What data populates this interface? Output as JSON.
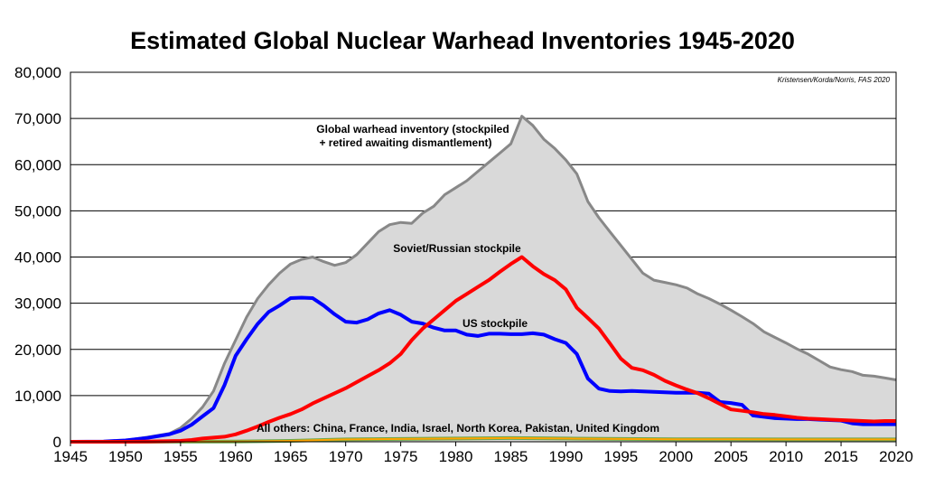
{
  "chart_data": {
    "type": "area",
    "title": "Estimated Global Nuclear Warhead Inventories 1945-2020",
    "credit": "Kristensen/Korda/Norris, FAS 2020",
    "xlabel": "",
    "ylabel": "",
    "xlim": [
      1945,
      2020
    ],
    "ylim": [
      0,
      80000
    ],
    "x_ticks": [
      "1945",
      "1950",
      "1955",
      "1960",
      "1965",
      "1970",
      "1975",
      "1980",
      "1985",
      "1990",
      "1995",
      "2000",
      "2005",
      "2010",
      "2015",
      "2020"
    ],
    "y_ticks": [
      "0",
      "10,000",
      "20,000",
      "30,000",
      "40,000",
      "50,000",
      "60,000",
      "70,000",
      "80,000"
    ],
    "grid": true,
    "annotations": {
      "global_line1": "Global warhead inventory (stockpiled",
      "global_line2": "+ retired awaiting dismantlement)",
      "soviet": "Soviet/Russian stockpile",
      "us": "US stockpile",
      "others": "All others: China, France, India, Israel, North Korea, Pakistan, United Kingdom"
    },
    "series": [
      {
        "name": "Global warhead inventory",
        "color": "#888888",
        "fill": "#d9d9d9",
        "x": [
          1945,
          1948,
          1950,
          1952,
          1954,
          1955,
          1956,
          1957,
          1958,
          1959,
          1960,
          1961,
          1962,
          1963,
          1964,
          1965,
          1966,
          1967,
          1968,
          1969,
          1970,
          1971,
          1972,
          1973,
          1974,
          1975,
          1976,
          1977,
          1978,
          1979,
          1980,
          1981,
          1982,
          1983,
          1984,
          1985,
          1986,
          1987,
          1988,
          1989,
          1990,
          1991,
          1992,
          1993,
          1994,
          1995,
          1996,
          1997,
          1998,
          1999,
          2000,
          2001,
          2002,
          2003,
          2004,
          2005,
          2006,
          2007,
          2008,
          2009,
          2010,
          2011,
          2012,
          2013,
          2014,
          2015,
          2016,
          2017,
          2018,
          2019,
          2020
        ],
        "values": [
          0,
          50,
          300,
          1000,
          1800,
          3000,
          5000,
          7500,
          11000,
          17000,
          22000,
          27000,
          31000,
          34000,
          36500,
          38500,
          39500,
          40000,
          39000,
          38200,
          38800,
          40500,
          43000,
          45500,
          47000,
          47500,
          47300,
          49500,
          51000,
          53500,
          55000,
          56500,
          58500,
          60500,
          62500,
          64500,
          70500,
          68500,
          65500,
          63500,
          61000,
          58000,
          52000,
          48500,
          45500,
          42500,
          39500,
          36500,
          35000,
          34500,
          34000,
          33300,
          32000,
          31000,
          29800,
          28500,
          27100,
          25600,
          23800,
          22600,
          21400,
          20100,
          19000,
          17600,
          16200,
          15600,
          15200,
          14400,
          14200,
          13800,
          13400
        ]
      },
      {
        "name": "Soviet/Russian stockpile",
        "color": "#ff0000",
        "x": [
          1945,
          1949,
          1950,
          1952,
          1954,
          1955,
          1956,
          1957,
          1958,
          1959,
          1960,
          1961,
          1962,
          1963,
          1964,
          1965,
          1966,
          1967,
          1968,
          1969,
          1970,
          1971,
          1972,
          1973,
          1974,
          1975,
          1976,
          1977,
          1978,
          1979,
          1980,
          1981,
          1982,
          1983,
          1984,
          1985,
          1986,
          1987,
          1988,
          1989,
          1990,
          1991,
          1992,
          1993,
          1994,
          1995,
          1996,
          1997,
          1998,
          1999,
          2000,
          2001,
          2002,
          2003,
          2004,
          2005,
          2006,
          2007,
          2008,
          2009,
          2010,
          2011,
          2012,
          2013,
          2014,
          2015,
          2016,
          2017,
          2018,
          2019,
          2020
        ],
        "values": [
          0,
          0,
          5,
          50,
          150,
          200,
          400,
          700,
          900,
          1100,
          1600,
          2400,
          3300,
          4300,
          5200,
          6000,
          7000,
          8300,
          9400,
          10500,
          11600,
          12900,
          14200,
          15500,
          17000,
          19000,
          22000,
          24500,
          26500,
          28500,
          30500,
          32000,
          33500,
          35000,
          36800,
          38500,
          40000,
          38000,
          36300,
          35000,
          33000,
          29000,
          26800,
          24500,
          21300,
          18000,
          16000,
          15500,
          14500,
          13200,
          12200,
          11300,
          10500,
          9400,
          8200,
          7000,
          6700,
          6400,
          6000,
          5800,
          5500,
          5200,
          5000,
          4900,
          4800,
          4700,
          4600,
          4500,
          4400,
          4500,
          4500
        ]
      },
      {
        "name": "US stockpile",
        "color": "#0000ff",
        "x": [
          1945,
          1948,
          1950,
          1952,
          1954,
          1955,
          1956,
          1957,
          1958,
          1959,
          1960,
          1961,
          1962,
          1963,
          1964,
          1965,
          1966,
          1967,
          1968,
          1969,
          1970,
          1971,
          1972,
          1973,
          1974,
          1975,
          1976,
          1977,
          1978,
          1979,
          1980,
          1981,
          1982,
          1983,
          1984,
          1985,
          1986,
          1987,
          1988,
          1989,
          1990,
          1991,
          1992,
          1993,
          1994,
          1995,
          1996,
          1997,
          1998,
          1999,
          2000,
          2001,
          2002,
          2003,
          2004,
          2005,
          2006,
          2007,
          2008,
          2009,
          2010,
          2011,
          2012,
          2013,
          2014,
          2015,
          2016,
          2017,
          2018,
          2019,
          2020
        ],
        "values": [
          0,
          50,
          300,
          850,
          1650,
          2400,
          3700,
          5500,
          7300,
          12300,
          18600,
          22200,
          25500,
          28100,
          29500,
          31100,
          31200,
          31100,
          29500,
          27600,
          26000,
          25800,
          26500,
          27800,
          28500,
          27500,
          26000,
          25600,
          24700,
          24100,
          24100,
          23200,
          22900,
          23400,
          23400,
          23300,
          23300,
          23500,
          23200,
          22200,
          21400,
          19000,
          13700,
          11500,
          11000,
          10900,
          11000,
          10900,
          10800,
          10700,
          10600,
          10600,
          10600,
          10400,
          8600,
          8400,
          8000,
          5700,
          5400,
          5100,
          5000,
          4900,
          4900,
          4800,
          4700,
          4600,
          4000,
          3800,
          3800,
          3800,
          3800
        ]
      },
      {
        "name": "All others",
        "color": "#ffa500",
        "accent": "#6aa84f",
        "x": [
          1945,
          1952,
          1955,
          1960,
          1965,
          1970,
          1975,
          1980,
          1985,
          1990,
          1995,
          2000,
          2005,
          2010,
          2015,
          2020
        ],
        "values": [
          0,
          0,
          20,
          50,
          200,
          500,
          600,
          700,
          800,
          700,
          600,
          550,
          550,
          500,
          500,
          500
        ]
      }
    ]
  }
}
